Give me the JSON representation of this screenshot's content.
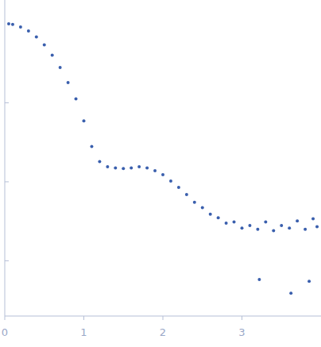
{
  "chart_data": {
    "type": "scatter",
    "color": "#3a5fad",
    "marker": "circle",
    "log": "y",
    "tick_labels": "x",
    "grid": false,
    "xlim": [
      0,
      4
    ],
    "xticks": [
      0,
      1,
      2,
      3
    ],
    "ylim": [
      0.0002,
      2
    ],
    "yticks": [
      0.001,
      0.01,
      0.1
    ],
    "x": [
      0.05,
      0.1,
      0.2,
      0.3,
      0.4,
      0.5,
      0.6,
      0.7,
      0.8,
      0.9,
      1.0,
      1.1,
      1.2,
      1.3,
      1.4,
      1.5,
      1.6,
      1.7,
      1.8,
      1.9,
      2.0,
      2.1,
      2.2,
      2.3,
      2.4,
      2.5,
      2.6,
      2.7,
      2.8,
      2.9,
      3.0,
      3.1,
      3.2,
      3.22,
      3.3,
      3.4,
      3.5,
      3.6,
      3.62,
      3.7,
      3.8,
      3.85,
      3.9,
      3.95
    ],
    "values": [
      1.0,
      0.98,
      0.91,
      0.81,
      0.68,
      0.54,
      0.4,
      0.28,
      0.18,
      0.112,
      0.059,
      0.028,
      0.018,
      0.0155,
      0.015,
      0.0147,
      0.015,
      0.0155,
      0.015,
      0.0138,
      0.0123,
      0.0102,
      0.0085,
      0.0069,
      0.0055,
      0.0047,
      0.0039,
      0.0035,
      0.003,
      0.0031,
      0.0026,
      0.0028,
      0.0025,
      0.00058,
      0.0031,
      0.0024,
      0.0028,
      0.0026,
      0.00039,
      0.0032,
      0.0025,
      0.00055,
      0.0034,
      0.0027
    ]
  }
}
